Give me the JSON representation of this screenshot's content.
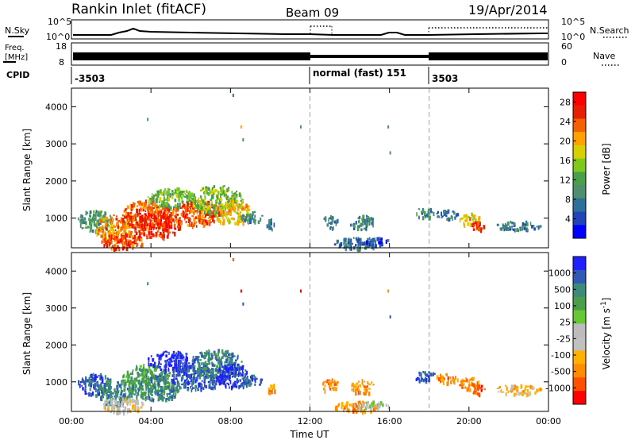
{
  "header": {
    "station": "Rankin Inlet (fitACF)",
    "beam": "Beam 09",
    "date": "19/Apr/2014"
  },
  "panels": {
    "nsky": {
      "label": "N.Sky",
      "right_label": "N.Search",
      "ticks_left": [
        "10^5",
        "10^0"
      ],
      "ticks_right": [
        "10^5",
        "10^0"
      ]
    },
    "freq": {
      "label_line1": "Freq.",
      "label_line2": "[MHz]",
      "right_label": "Nave",
      "ticks_left": [
        "18",
        "8"
      ],
      "ticks_right": [
        "60",
        "0"
      ]
    },
    "cpid": {
      "label": "CPID",
      "segments": [
        "-3503",
        "normal (fast) 151",
        "3503"
      ]
    }
  },
  "colors": {
    "power_scale": [
      "#0000ff",
      "#2244bb",
      "#2f6f9c",
      "#4e8f6f",
      "#4aa048",
      "#7fc81c",
      "#d6d000",
      "#ffa200",
      "#f56000",
      "#e81e00",
      "#ff0000"
    ],
    "velocity_scale": [
      "#ff0000",
      "#ff5000",
      "#ff8c00",
      "#ffb000",
      "#c0c0c0",
      "#bcbcbc",
      "#66c833",
      "#4a9d4a",
      "#3b8a7a",
      "#2f59b5",
      "#2020ff"
    ],
    "ground_scatter": "#888888",
    "accent_dashed": "#a0a0a0"
  },
  "chart_data": [
    {
      "type": "heatmap",
      "panel": "power",
      "xlabel": "Time UT",
      "ylabel": "Slant Range [km]",
      "xlim": [
        0,
        24
      ],
      "ylim": [
        200,
        4500
      ],
      "x_ticks": [
        "00:00",
        "04:00",
        "08:00",
        "12:00",
        "16:00",
        "20:00",
        "00:00"
      ],
      "y_ticks": [
        1000,
        2000,
        3000,
        4000
      ],
      "colorbar_label": "Power [dB]",
      "colorbar_ticks": [
        "4",
        "8",
        "12",
        "16",
        "20",
        "24",
        "28"
      ],
      "colorbar_range": [
        0,
        30
      ],
      "mode_change_times": [
        12,
        18
      ],
      "scatter_regions": [
        {
          "t0": 0.3,
          "t1": 2.0,
          "r0": 650,
          "r1": 1250,
          "value": 10
        },
        {
          "t0": 1.2,
          "t1": 3.0,
          "r0": 400,
          "r1": 1100,
          "value": 22
        },
        {
          "t0": 1.5,
          "t1": 3.6,
          "r0": 180,
          "r1": 600,
          "value": 26
        },
        {
          "t0": 2.5,
          "t1": 5.0,
          "r0": 700,
          "r1": 1500,
          "value": 24
        },
        {
          "t0": 3.0,
          "t1": 5.5,
          "r0": 500,
          "r1": 1200,
          "value": 27
        },
        {
          "t0": 3.8,
          "t1": 6.2,
          "r0": 1300,
          "r1": 1850,
          "value": 13
        },
        {
          "t0": 5.0,
          "t1": 7.5,
          "r0": 800,
          "r1": 1500,
          "value": 25
        },
        {
          "t0": 6.0,
          "t1": 8.6,
          "r0": 1100,
          "r1": 1900,
          "value": 14
        },
        {
          "t0": 7.2,
          "t1": 9.0,
          "r0": 850,
          "r1": 1500,
          "value": 20
        },
        {
          "t0": 8.5,
          "t1": 9.6,
          "r0": 900,
          "r1": 1200,
          "value": 8
        },
        {
          "t0": 9.8,
          "t1": 10.2,
          "r0": 700,
          "r1": 1000,
          "value": 6
        },
        {
          "t0": 12.6,
          "t1": 13.4,
          "r0": 750,
          "r1": 1100,
          "value": 7
        },
        {
          "t0": 14.0,
          "t1": 15.2,
          "r0": 700,
          "r1": 1100,
          "value": 8
        },
        {
          "t0": 13.2,
          "t1": 15.5,
          "r0": 200,
          "r1": 500,
          "value": 6
        },
        {
          "t0": 14.2,
          "t1": 16.0,
          "r0": 300,
          "r1": 500,
          "value": 4
        },
        {
          "t0": 17.2,
          "t1": 18.3,
          "r0": 1050,
          "r1": 1300,
          "value": 8
        },
        {
          "t0": 18.3,
          "t1": 19.4,
          "r0": 1000,
          "r1": 1250,
          "value": 6
        },
        {
          "t0": 19.5,
          "t1": 20.5,
          "r0": 800,
          "r1": 1150,
          "value": 19
        },
        {
          "t0": 20.0,
          "t1": 20.8,
          "r0": 700,
          "r1": 950,
          "value": 26
        },
        {
          "t0": 21.3,
          "t1": 23.6,
          "r0": 700,
          "r1": 950,
          "value": 7
        }
      ],
      "scatter_points": [
        {
          "t": 3.8,
          "r": 3700,
          "value": 10
        },
        {
          "t": 8.1,
          "r": 4350,
          "value": 6
        },
        {
          "t": 8.5,
          "r": 3500,
          "value": 20
        },
        {
          "t": 8.6,
          "r": 3150,
          "value": 8
        },
        {
          "t": 11.5,
          "r": 3500,
          "value": 10
        },
        {
          "t": 15.9,
          "r": 3500,
          "value": 8
        },
        {
          "t": 16.0,
          "r": 2800,
          "value": 10
        }
      ]
    },
    {
      "type": "heatmap",
      "panel": "velocity",
      "xlabel": "Time UT",
      "ylabel": "Slant Range [km]",
      "xlim": [
        0,
        24
      ],
      "ylim": [
        200,
        4500
      ],
      "x_ticks": [
        "00:00",
        "04:00",
        "08:00",
        "12:00",
        "16:00",
        "20:00",
        "00:00"
      ],
      "y_ticks": [
        1000,
        2000,
        3000,
        4000
      ],
      "colorbar_label": "Velocity [m s",
      "colorbar_label_exp": "-1",
      "colorbar_label_end": "]",
      "colorbar_ticks": [
        "1000",
        "500",
        "100",
        "25",
        "-25",
        "-100",
        "-500",
        "-1000"
      ],
      "mode_change_times": [
        12,
        18
      ],
      "scatter_regions": [
        {
          "t0": 0.3,
          "t1": 2.0,
          "r0": 650,
          "r1": 1250,
          "value": 9
        },
        {
          "t0": 1.2,
          "t1": 3.0,
          "r0": 400,
          "r1": 1100,
          "value": 8
        },
        {
          "t0": 1.5,
          "t1": 3.6,
          "r0": 180,
          "r1": 600,
          "value": 4
        },
        {
          "t0": 2.5,
          "t1": 5.0,
          "r0": 700,
          "r1": 1500,
          "value": 7
        },
        {
          "t0": 3.0,
          "t1": 5.5,
          "r0": 500,
          "r1": 1200,
          "value": 8
        },
        {
          "t0": 3.8,
          "t1": 6.2,
          "r0": 1300,
          "r1": 1850,
          "value": 10
        },
        {
          "t0": 5.0,
          "t1": 7.5,
          "r0": 800,
          "r1": 1500,
          "value": 9
        },
        {
          "t0": 6.0,
          "t1": 8.6,
          "r0": 1100,
          "r1": 1900,
          "value": 8
        },
        {
          "t0": 7.2,
          "t1": 9.0,
          "r0": 850,
          "r1": 1500,
          "value": 10
        },
        {
          "t0": 8.5,
          "t1": 9.6,
          "r0": 900,
          "r1": 1200,
          "value": 9
        },
        {
          "t0": 9.8,
          "t1": 10.2,
          "r0": 700,
          "r1": 1000,
          "value": 2
        },
        {
          "t0": 12.6,
          "t1": 13.4,
          "r0": 750,
          "r1": 1100,
          "value": 2
        },
        {
          "t0": 14.0,
          "t1": 15.2,
          "r0": 700,
          "r1": 1100,
          "value": 2
        },
        {
          "t0": 13.2,
          "t1": 15.5,
          "r0": 200,
          "r1": 500,
          "value": 2
        },
        {
          "t0": 14.2,
          "t1": 16.0,
          "r0": 300,
          "r1": 500,
          "value": 5
        },
        {
          "t0": 17.2,
          "t1": 18.3,
          "r0": 1050,
          "r1": 1300,
          "value": 9
        },
        {
          "t0": 18.3,
          "t1": 19.4,
          "r0": 1000,
          "r1": 1250,
          "value": 2
        },
        {
          "t0": 19.5,
          "t1": 20.5,
          "r0": 800,
          "r1": 1150,
          "value": 2
        },
        {
          "t0": 20.0,
          "t1": 20.8,
          "r0": 700,
          "r1": 950,
          "value": 1
        },
        {
          "t0": 21.3,
          "t1": 23.6,
          "r0": 700,
          "r1": 950,
          "value": 3
        }
      ],
      "scatter_points": [
        {
          "t": 3.8,
          "r": 3700,
          "value": 8
        },
        {
          "t": 8.1,
          "r": 4350,
          "value": 1
        },
        {
          "t": 8.5,
          "r": 3500,
          "value": 0
        },
        {
          "t": 8.6,
          "r": 3150,
          "value": 9
        },
        {
          "t": 11.5,
          "r": 3500,
          "value": 0
        },
        {
          "t": 15.9,
          "r": 3500,
          "value": 2
        },
        {
          "t": 16.0,
          "r": 2800,
          "value": 9
        }
      ]
    }
  ]
}
